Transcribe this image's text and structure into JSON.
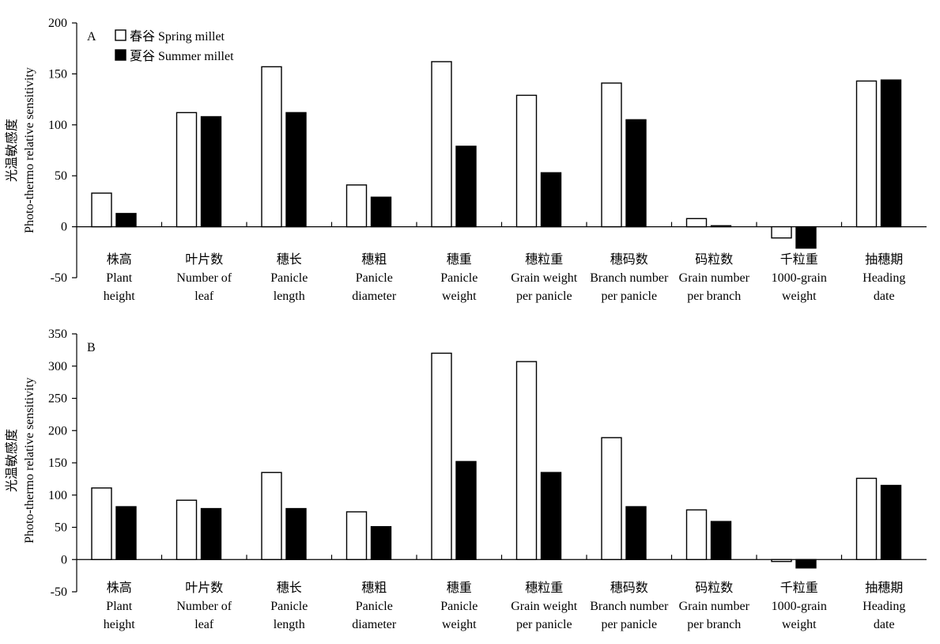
{
  "chart_data": [
    {
      "type": "bar",
      "panel_label": "A",
      "ylabel_zh": "光温敏感度",
      "ylabel_en": "Photo-thermo relative sensitivity",
      "ylim": [
        -50,
        200
      ],
      "yticks": [
        -50,
        0,
        50,
        100,
        150,
        200
      ],
      "legend": {
        "placement": "top-left"
      },
      "categories": [
        {
          "zh": "株高",
          "en": [
            "Plant",
            "height"
          ]
        },
        {
          "zh": "叶片数",
          "en": [
            "Number of",
            "leaf"
          ]
        },
        {
          "zh": "穗长",
          "en": [
            "Panicle",
            "length"
          ]
        },
        {
          "zh": "穗粗",
          "en": [
            "Panicle",
            "diameter"
          ]
        },
        {
          "zh": "穗重",
          "en": [
            "Panicle",
            "weight"
          ]
        },
        {
          "zh": "穗粒重",
          "en": [
            "Grain weight",
            "per panicle"
          ]
        },
        {
          "zh": "穗码数",
          "en": [
            "Branch number",
            "per panicle"
          ]
        },
        {
          "zh": "码粒数",
          "en": [
            "Grain number",
            "per branch"
          ]
        },
        {
          "zh": "千粒重",
          "en": [
            "1000-grain",
            "weight"
          ]
        },
        {
          "zh": "抽穗期",
          "en": [
            "Heading",
            "date"
          ]
        }
      ],
      "series": [
        {
          "name": "春谷 Spring millet",
          "fill": "#ffffff",
          "values": [
            33,
            112,
            157,
            41,
            162,
            129,
            141,
            8,
            -11,
            143
          ]
        },
        {
          "name": "夏谷 Summer millet",
          "fill": "#000000",
          "values": [
            13,
            108,
            112,
            29,
            79,
            53,
            105,
            1,
            -21,
            144
          ]
        }
      ]
    },
    {
      "type": "bar",
      "panel_label": "B",
      "ylabel_zh": "光温敏感度",
      "ylabel_en": "Photo-thermo relative sensitivity",
      "ylim": [
        -50,
        350
      ],
      "yticks": [
        -50,
        0,
        50,
        100,
        150,
        200,
        250,
        300,
        350
      ],
      "categories": [
        {
          "zh": "株高",
          "en": [
            "Plant",
            "height"
          ]
        },
        {
          "zh": "叶片数",
          "en": [
            "Number of",
            "leaf"
          ]
        },
        {
          "zh": "穗长",
          "en": [
            "Panicle",
            "length"
          ]
        },
        {
          "zh": "穗粗",
          "en": [
            "Panicle",
            "diameter"
          ]
        },
        {
          "zh": "穗重",
          "en": [
            "Panicle",
            "weight"
          ]
        },
        {
          "zh": "穗粒重",
          "en": [
            "Grain weight",
            "per panicle"
          ]
        },
        {
          "zh": "穗码数",
          "en": [
            "Branch number",
            "per panicle"
          ]
        },
        {
          "zh": "码粒数",
          "en": [
            "Grain number",
            "per branch"
          ]
        },
        {
          "zh": "千粒重",
          "en": [
            "1000-grain",
            "weight"
          ]
        },
        {
          "zh": "抽穗期",
          "en": [
            "Heading",
            "date"
          ]
        }
      ],
      "series": [
        {
          "name": "春谷 Spring millet",
          "fill": "#ffffff",
          "values": [
            111,
            92,
            135,
            74,
            320,
            307,
            189,
            77,
            -3,
            126
          ]
        },
        {
          "name": "夏谷 Summer millet",
          "fill": "#000000",
          "values": [
            82,
            79,
            79,
            51,
            152,
            135,
            82,
            59,
            -13,
            115
          ]
        }
      ]
    }
  ]
}
